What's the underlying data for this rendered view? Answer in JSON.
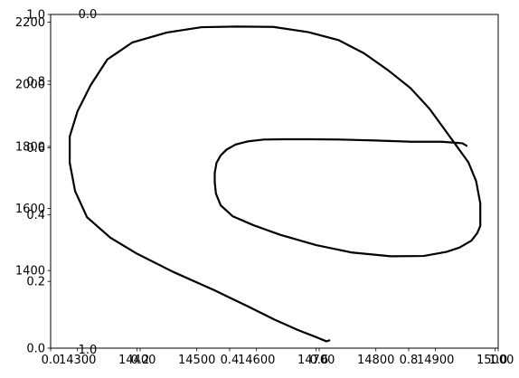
{
  "chart_data": {
    "type": "line",
    "title": "",
    "xlabel": "",
    "ylabel": "",
    "grid": false,
    "legend": "none",
    "line_color": "#000000",
    "axes_main": {
      "xlim": [
        14255,
        15005
      ],
      "ylim": [
        1150,
        2225
      ],
      "xticks": [
        14300,
        14400,
        14500,
        14600,
        14700,
        14800,
        14900,
        15000
      ],
      "xtick_labels": [
        "14300",
        "14400",
        "14500",
        "14600",
        "14700",
        "14800",
        "14900",
        "15000"
      ],
      "yticks": [
        1400,
        1600,
        1800,
        2000,
        2200
      ],
      "ytick_labels": [
        "1400",
        "1600",
        "1800",
        "2000",
        "2200"
      ]
    },
    "axes_overlay": {
      "xlim": [
        0,
        1
      ],
      "ylim": [
        0,
        1
      ],
      "xticks": [
        0.0,
        0.2,
        0.4,
        0.6,
        0.8,
        1.0
      ],
      "xtick_labels": [
        "0.0",
        "0.2",
        "0.4",
        "0.6",
        "0.8",
        "1.0"
      ],
      "yticks": [
        0.0,
        0.2,
        0.4,
        0.6,
        0.8,
        1.0
      ],
      "ytick_labels": [
        "0.0",
        "0.2",
        "0.4",
        "0.6",
        "0.8",
        "1.0"
      ]
    },
    "stray_labels": [
      "0.0",
      "1.0"
    ],
    "series": [
      {
        "x": [
          14722,
          14717,
          14702,
          14670,
          14630,
          14585,
          14530,
          14460,
          14400,
          14355,
          14316,
          14296,
          14287,
          14287,
          14300,
          14322,
          14350,
          14392,
          14450,
          14508,
          14567,
          14628,
          14687,
          14738,
          14780,
          14820,
          14858,
          14890,
          14915,
          14935,
          14955,
          14968,
          14975,
          14975,
          14970,
          14960,
          14940,
          14918,
          14880,
          14825,
          14760,
          14700,
          14640,
          14595,
          14560,
          14540,
          14532,
          14530,
          14530,
          14533,
          14540,
          14550,
          14565,
          14585,
          14612,
          14645,
          14690,
          14740,
          14800,
          14860,
          14910,
          14945,
          14952
        ],
        "y": [
          1175,
          1172,
          1184,
          1208,
          1242,
          1285,
          1336,
          1396,
          1454,
          1506,
          1572,
          1656,
          1747,
          1832,
          1913,
          1997,
          2080,
          2135,
          2167,
          2184,
          2186,
          2185,
          2168,
          2142,
          2100,
          2046,
          1988,
          1921,
          1855,
          1802,
          1749,
          1688,
          1616,
          1544,
          1521,
          1496,
          1474,
          1460,
          1447,
          1446,
          1458,
          1482,
          1515,
          1546,
          1575,
          1610,
          1648,
          1685,
          1715,
          1747,
          1771,
          1790,
          1806,
          1816,
          1822,
          1823,
          1823,
          1822,
          1819,
          1815,
          1815,
          1810,
          1802
        ]
      }
    ]
  }
}
